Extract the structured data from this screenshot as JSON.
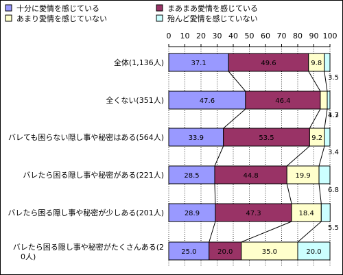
{
  "chart_data": {
    "type": "bar",
    "stacked": true,
    "orientation": "horizontal",
    "categories": [
      "全体(1,136人)",
      "全くない(351人)",
      "バレても困らない隠し事や秘密はある(564人)",
      "バレたら困る隠し事や秘密がある(221人)",
      "バレたら困る隠し事や秘密が少しある(201人)",
      "バレたら困る隠し事や秘密がたくさんある(20人)"
    ],
    "series": [
      {
        "name": "十分に愛情を感じている",
        "color": "#9999ff",
        "values": [
          37.1,
          47.6,
          33.9,
          28.5,
          28.9,
          25.0
        ]
      },
      {
        "name": "まあまあ愛情を感じている",
        "color": "#993366",
        "values": [
          49.6,
          46.4,
          53.5,
          44.8,
          47.3,
          20.0
        ]
      },
      {
        "name": "あまり愛情を感じていない",
        "color": "#ffffcc",
        "values": [
          9.8,
          4.3,
          9.2,
          19.9,
          18.4,
          35.0
        ]
      },
      {
        "name": "殆んど愛情を感じていない",
        "color": "#ccffff",
        "values": [
          3.5,
          1.7,
          3.4,
          6.8,
          5.5,
          20.0
        ]
      }
    ],
    "xlim": [
      0,
      100
    ],
    "x_ticks": [
      "0",
      "10",
      "20",
      "30",
      "40",
      "50",
      "60",
      "70",
      "80",
      "90",
      "100"
    ],
    "legend_position": "top",
    "grid": true,
    "series_lines": true
  }
}
